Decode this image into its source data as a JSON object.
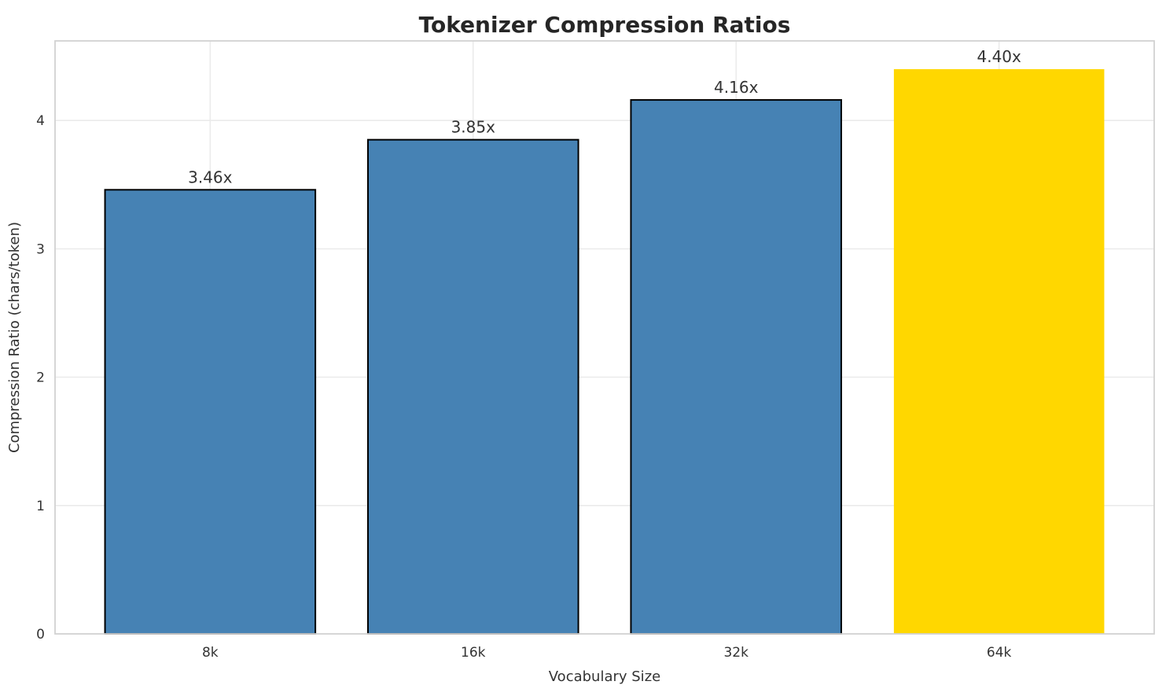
{
  "chart_data": {
    "type": "bar",
    "title": "Tokenizer Compression Ratios",
    "xlabel": "Vocabulary Size",
    "ylabel": "Compression Ratio (chars/token)",
    "categories": [
      "8k",
      "16k",
      "32k",
      "64k"
    ],
    "values": [
      3.46,
      3.85,
      4.16,
      4.4
    ],
    "value_labels": [
      "3.46x",
      "3.85x",
      "4.16x",
      "4.40x"
    ],
    "yticks": [
      0,
      1,
      2,
      3,
      4
    ],
    "ylim": [
      0,
      4.62
    ],
    "bar_width_fraction": 0.8,
    "grid": true,
    "legend_position": "none",
    "bar_color": "#4682B4",
    "bar_edge_color": "#000000",
    "highlight_index": 3,
    "highlight_color": "#FFD700",
    "grid_color": "#ebebeb",
    "spine_color": "#d2d2d2",
    "title_color": "#262626",
    "text_color": "#333333",
    "background_color": "#ffffff"
  }
}
